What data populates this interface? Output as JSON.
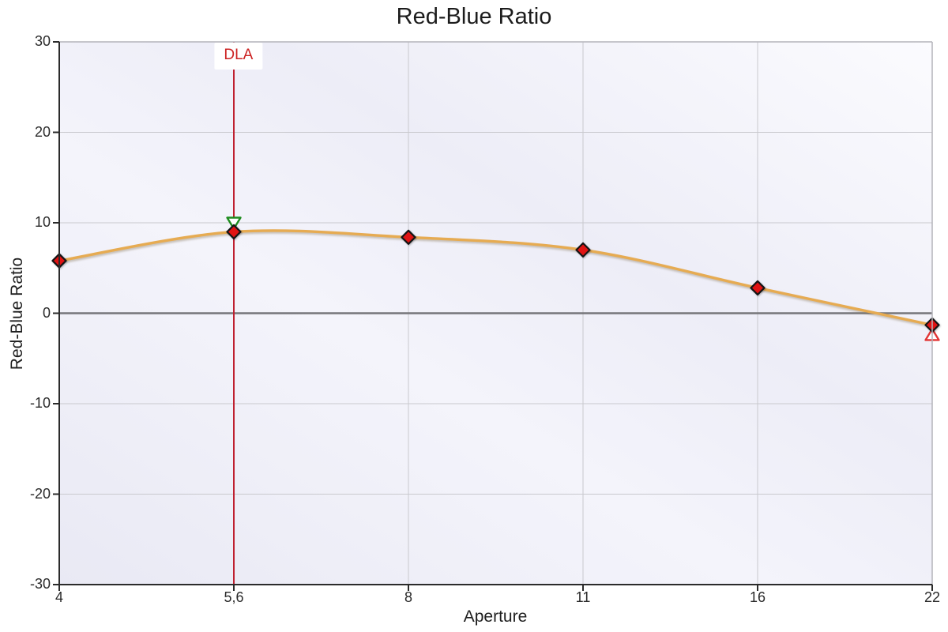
{
  "chart_data": {
    "type": "line",
    "title": "Red-Blue Ratio",
    "xlabel": "Aperture",
    "ylabel": "Red-Blue Ratio",
    "categories": [
      "4",
      "5,6",
      "8",
      "11",
      "16",
      "22"
    ],
    "x_values": [
      4,
      5.6,
      8,
      11,
      16,
      22
    ],
    "series": [
      {
        "name": "Red-Blue Ratio",
        "values": [
          5.8,
          9.0,
          8.4,
          7.0,
          2.8,
          -1.3
        ],
        "color": "#E6AB52",
        "marker": "diamond",
        "marker_color": "#E01313",
        "marker_outline": "#151515"
      }
    ],
    "ylim": [
      -30,
      30
    ],
    "yticks": [
      30,
      20,
      10,
      0,
      -10,
      -20,
      -30
    ],
    "grid": true,
    "legend": "none",
    "annotations": {
      "vline": {
        "category": "5,6",
        "label": "DLA",
        "color": "#BF2030",
        "label_color": "#CC2222",
        "label_bg": "#FFFFFF"
      },
      "extra_markers": [
        {
          "shape": "triangle-down",
          "category": "5,6",
          "value": 10.0,
          "stroke": "#1E8C1E",
          "fill": "#FFFFFF"
        },
        {
          "shape": "triangle-up",
          "category": "22",
          "value": -2.4,
          "stroke": "#E23535",
          "fill": "#FFFFFF"
        }
      ]
    },
    "style": {
      "bg_gradient_from": "#e9e9f4",
      "bg_gradient_mid": "#f4f4fb",
      "bg_gradient_to": "#fbfbfe",
      "grid_color": "#c9c9ce",
      "zero_line_color": "#76767a",
      "axis_dark": "#2b2b2b",
      "border_light": "#b4b4ba",
      "text_color": "#2a2a2a"
    }
  }
}
